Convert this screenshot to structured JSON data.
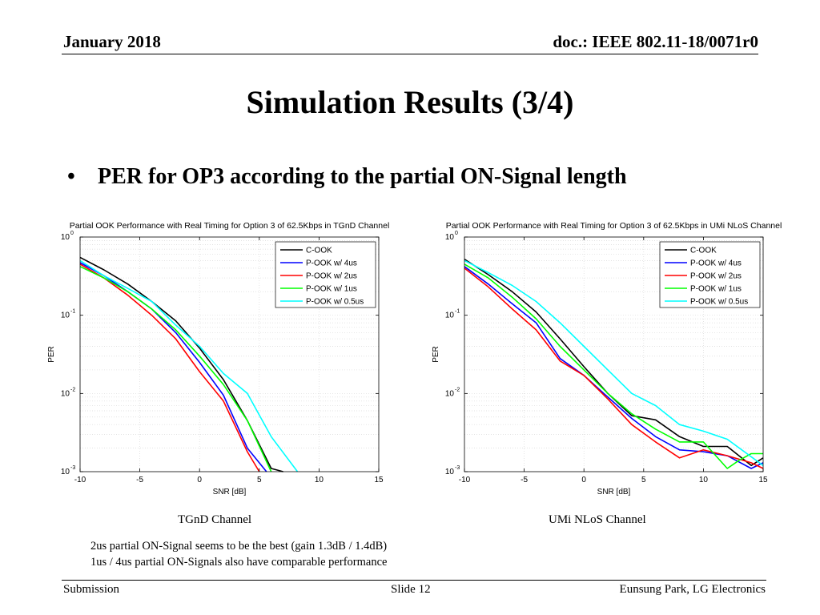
{
  "header": {
    "date": "January 2018",
    "doc": "doc.: IEEE 802.11-18/0071r0"
  },
  "slide": {
    "title": "Simulation Results (3/4)",
    "bullet": "PER for OP3 according to the partial ON-Signal length",
    "notes": [
      "2us partial ON-Signal seems to be the best (gain 1.3dB / 1.4dB)",
      "1us / 4us partial ON-Signals also have comparable performance"
    ]
  },
  "captions": {
    "left": "TGnD Channel",
    "right": "UMi NLoS Channel"
  },
  "footer": {
    "left": "Submission",
    "center": "Slide 12",
    "right": "Eunsung Park, LG Electronics"
  },
  "colors": {
    "c_ook": "#000000",
    "p4": "#0000ff",
    "p2": "#ff0000",
    "p1": "#00ff00",
    "p05": "#00ffff"
  },
  "chart_data": [
    {
      "type": "line",
      "title": "Partial OOK Performance with Real Timing for Option 3 of 62.5Kbps in TGnD Channel",
      "xlabel": "SNR [dB]",
      "ylabel": "PER",
      "y_scale": "log",
      "xlim": [
        -10,
        15
      ],
      "ylim": [
        0.001,
        1
      ],
      "x_ticks": [
        "-10",
        "-5",
        "0",
        "5",
        "10",
        "15"
      ],
      "y_ticks": [
        {
          "base": "10",
          "exp": "0"
        },
        {
          "base": "10",
          "exp": "-1"
        },
        {
          "base": "10",
          "exp": "-2"
        },
        {
          "base": "10",
          "exp": "-3"
        }
      ],
      "grid": true,
      "legend_position": "top-right",
      "series": [
        {
          "name": "C-OOK",
          "color": "#000000",
          "x": [
            -10,
            -8,
            -6,
            -4,
            -2,
            0,
            2,
            4,
            6,
            7
          ],
          "y": [
            0.55,
            0.38,
            0.25,
            0.15,
            0.085,
            0.038,
            0.015,
            0.0045,
            0.0011,
            0.001
          ]
        },
        {
          "name": "P-OOK w/ 4us",
          "color": "#0000ff",
          "x": [
            -10,
            -8,
            -6,
            -4,
            -2,
            0,
            2,
            4,
            5.6
          ],
          "y": [
            0.47,
            0.32,
            0.2,
            0.12,
            0.06,
            0.025,
            0.0095,
            0.002,
            0.001
          ]
        },
        {
          "name": "P-OOK w/ 2us",
          "color": "#ff0000",
          "x": [
            -10,
            -8,
            -6,
            -4,
            -2,
            0,
            2,
            4,
            5
          ],
          "y": [
            0.45,
            0.3,
            0.18,
            0.1,
            0.05,
            0.019,
            0.008,
            0.0018,
            0.001
          ]
        },
        {
          "name": "P-OOK w/ 1us",
          "color": "#00ff00",
          "x": [
            -10,
            -8,
            -6,
            -4,
            -2,
            0,
            2,
            4,
            6
          ],
          "y": [
            0.42,
            0.3,
            0.2,
            0.12,
            0.065,
            0.03,
            0.013,
            0.0045,
            0.001
          ]
        },
        {
          "name": "P-OOK w/ 0.5us",
          "color": "#00ffff",
          "x": [
            -10,
            -8,
            -6,
            -4,
            -2,
            0,
            2,
            4,
            6,
            8.2
          ],
          "y": [
            0.5,
            0.32,
            0.22,
            0.15,
            0.075,
            0.04,
            0.018,
            0.01,
            0.0028,
            0.001
          ]
        }
      ]
    },
    {
      "type": "line",
      "title": "Partial OOK Performance with Real Timing for Option 3 of 62.5Kbps in UMi NLoS Channel",
      "xlabel": "SNR [dB]",
      "ylabel": "PER",
      "y_scale": "log",
      "xlim": [
        -10,
        15
      ],
      "ylim": [
        0.001,
        1
      ],
      "x_ticks": [
        "-10",
        "-5",
        "0",
        "5",
        "10",
        "15"
      ],
      "y_ticks": [
        {
          "base": "10",
          "exp": "0"
        },
        {
          "base": "10",
          "exp": "-1"
        },
        {
          "base": "10",
          "exp": "-2"
        },
        {
          "base": "10",
          "exp": "-3"
        }
      ],
      "grid": true,
      "legend_position": "top-right",
      "series": [
        {
          "name": "C-OOK",
          "color": "#000000",
          "x": [
            -10,
            -8,
            -6,
            -4,
            -2,
            0,
            2,
            4,
            6,
            8,
            10,
            12,
            14,
            15
          ],
          "y": [
            0.52,
            0.33,
            0.2,
            0.11,
            0.05,
            0.022,
            0.01,
            0.0052,
            0.0046,
            0.0028,
            0.0021,
            0.0021,
            0.0012,
            0.0015
          ]
        },
        {
          "name": "P-OOK w/ 4us",
          "color": "#0000ff",
          "x": [
            -10,
            -8,
            -6,
            -4,
            -2,
            0,
            2,
            4,
            6,
            8,
            10,
            12,
            14,
            15
          ],
          "y": [
            0.42,
            0.25,
            0.14,
            0.08,
            0.028,
            0.017,
            0.009,
            0.0048,
            0.0028,
            0.0019,
            0.0018,
            0.0016,
            0.0011,
            0.0013
          ]
        },
        {
          "name": "P-OOK w/ 2us",
          "color": "#ff0000",
          "x": [
            -10,
            -8,
            -6,
            -4,
            -2,
            0,
            2,
            4,
            6,
            8,
            10,
            12,
            14,
            15
          ],
          "y": [
            0.4,
            0.23,
            0.12,
            0.065,
            0.026,
            0.017,
            0.0085,
            0.004,
            0.0024,
            0.0015,
            0.0019,
            0.0016,
            0.0013,
            0.0011
          ]
        },
        {
          "name": "P-OOK w/ 1us",
          "color": "#00ff00",
          "x": [
            -10,
            -8,
            -6,
            -4,
            -2,
            0,
            2,
            4,
            6,
            8,
            10,
            12,
            13,
            14,
            15
          ],
          "y": [
            0.45,
            0.3,
            0.17,
            0.09,
            0.04,
            0.02,
            0.01,
            0.0055,
            0.0035,
            0.0024,
            0.0024,
            0.0011,
            0.0014,
            0.0017,
            0.0017
          ]
        },
        {
          "name": "P-OOK w/ 0.5us",
          "color": "#00ffff",
          "x": [
            -10,
            -8,
            -6,
            -4,
            -2,
            0,
            2,
            4,
            6,
            8,
            10,
            12,
            15
          ],
          "y": [
            0.5,
            0.35,
            0.24,
            0.15,
            0.08,
            0.04,
            0.02,
            0.01,
            0.007,
            0.004,
            0.0033,
            0.0026,
            0.0012
          ]
        }
      ]
    }
  ]
}
